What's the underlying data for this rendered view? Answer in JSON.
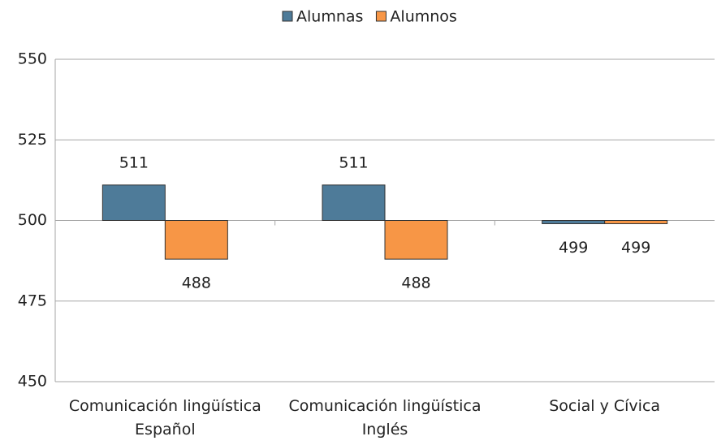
{
  "chart_data": {
    "type": "bar",
    "categories": [
      "Comunicación lingüística\nEspañol",
      "Comunicación lingüística\nInglés",
      "Social y Cívica"
    ],
    "series": [
      {
        "name": "Alumnas",
        "color": "#4e7b99",
        "values": [
          511,
          511,
          499
        ]
      },
      {
        "name": "Alumnos",
        "color": "#f79646",
        "values": [
          488,
          488,
          499
        ]
      }
    ],
    "baseline": 500,
    "ylim": [
      450,
      550
    ],
    "yticks": [
      450,
      475,
      500,
      525,
      550
    ],
    "grid": true,
    "legend": "top"
  }
}
